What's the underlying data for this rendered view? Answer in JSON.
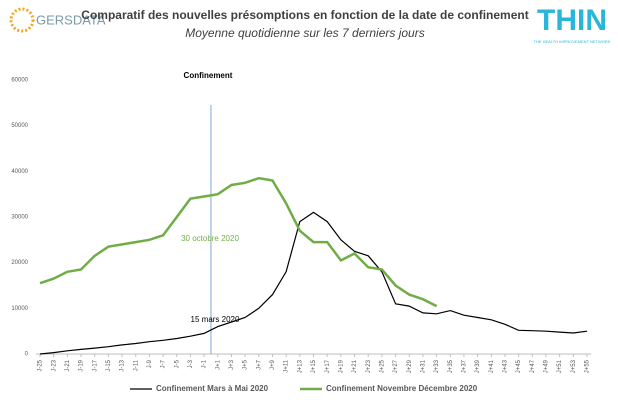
{
  "chart_data": {
    "type": "line",
    "title": "Comparatif des nouvelles présomptions en fonction de la date de confinement",
    "subtitle": "Moyenne quotidienne sur les 7 derniers jours",
    "categories": [
      "J-25",
      "J-23",
      "J-21",
      "J-19",
      "J-17",
      "J-15",
      "J-13",
      "J-11",
      "J-9",
      "J-7",
      "J-5",
      "J-3",
      "J-1",
      "J+1",
      "J+3",
      "J+5",
      "J+7",
      "J+9",
      "J+11",
      "J+13",
      "J+15",
      "J+17",
      "J+19",
      "J+21",
      "J+23",
      "J+25",
      "J+27",
      "J+29",
      "J+31",
      "J+33",
      "J+35",
      "J+37",
      "J+39",
      "J+41",
      "J+43",
      "J+45",
      "J+47",
      "J+49",
      "J+51",
      "J+53",
      "J+55"
    ],
    "series": [
      {
        "name": "Confinement Mars à Mai 2020",
        "color": "#000000",
        "values": [
          0,
          300,
          700,
          1000,
          1300,
          1600,
          2000,
          2300,
          2700,
          3000,
          3400,
          3900,
          4500,
          6000,
          7000,
          8000,
          10000,
          13000,
          18000,
          29000,
          31000,
          29000,
          25000,
          22500,
          21500,
          18000,
          11000,
          10500,
          9000,
          8800,
          9500,
          8500,
          8000,
          7500,
          6500,
          5200,
          5100,
          5000,
          4800,
          4600,
          5000
        ]
      },
      {
        "name": "Confinement Novembre Décembre 2020",
        "color": "#70ad47",
        "values": [
          15500,
          16500,
          18000,
          18500,
          21500,
          23500,
          24000,
          24500,
          25000,
          26000,
          30000,
          34000,
          34500,
          35000,
          37000,
          37500,
          38500,
          38000,
          33000,
          27000,
          24500,
          24500,
          20500,
          22000,
          19000,
          18500,
          15000,
          13000,
          12000,
          10500,
          null,
          null,
          null,
          null,
          null,
          null,
          null,
          null,
          null,
          null,
          null
        ]
      }
    ],
    "ylim": [
      0,
      60000
    ],
    "yticks": [
      0,
      10000,
      20000,
      30000,
      40000,
      50000,
      60000
    ],
    "grid": false,
    "annotations": [
      "Confinement",
      "30 octobre 2020",
      "15 mars 2020"
    ]
  },
  "logos": {
    "left": "GERSDATA",
    "right": "THIN",
    "right_subtitle": "THE HEALTH IMPROVEMENT NETWORK"
  }
}
